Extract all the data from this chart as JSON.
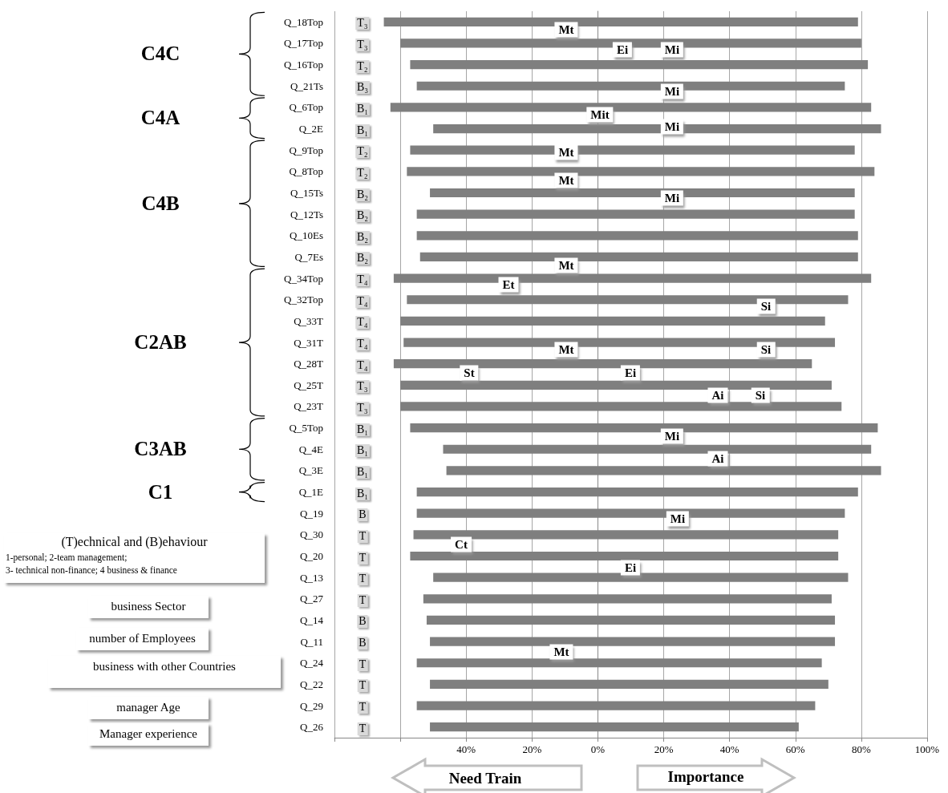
{
  "chart_data": {
    "type": "bar",
    "orientation": "horizontal",
    "color": "#7f7f7f",
    "grid": "x",
    "categories": [
      "Q_18Top",
      "Q_17Top",
      "Q_16Top",
      "Q_21Ts",
      "Q_6Top",
      "Q_2E",
      "Q_9Top",
      "Q_8Top",
      "Q_15Ts",
      "Q_12Ts",
      "Q_10Es",
      "Q_7Es",
      "Q_34Top",
      "Q_32Top",
      "Q_33T",
      "Q_31T",
      "Q_28T",
      "Q_25T",
      "Q_23T",
      "Q_5Top",
      "Q_4E",
      "Q_3E",
      "Q_1E",
      "Q_19",
      "Q_30",
      "Q_20",
      "Q_13",
      "Q_27",
      "Q_14",
      "Q_11",
      "Q_24",
      "Q_22",
      "Q_29",
      "Q_26"
    ],
    "base": [
      -65,
      -60,
      -57,
      -55,
      -63,
      -50,
      -57,
      -58,
      -51,
      -55,
      -55,
      -54,
      -62,
      -58,
      -60,
      -59,
      -62,
      -60,
      -60,
      -57,
      -47,
      -46,
      -55,
      -55,
      -56,
      -57,
      -50,
      -53,
      -52,
      -51,
      -55,
      -51,
      -55,
      -51
    ],
    "values": [
      144,
      140,
      139,
      130,
      146,
      136,
      135,
      142,
      129,
      133,
      134,
      133,
      145,
      134,
      129,
      131,
      127,
      131,
      134,
      142,
      130,
      132,
      134,
      130,
      129,
      130,
      126,
      124,
      124,
      123,
      123,
      121,
      121,
      112
    ],
    "xlim": [
      -80,
      100
    ],
    "xticks": [
      {
        "value": -80,
        "label": null
      },
      {
        "value": -60,
        "label": null
      },
      {
        "value": -40,
        "label": "40%"
      },
      {
        "value": -20,
        "label": "20%"
      },
      {
        "value": 0,
        "label": "0%"
      },
      {
        "value": 20,
        "label": "20%"
      },
      {
        "value": 40,
        "label": "40%"
      },
      {
        "value": 60,
        "label": "60%"
      },
      {
        "value": 80,
        "label": "80%"
      },
      {
        "value": 100,
        "label": "100%"
      }
    ],
    "annotations": [
      "C4C",
      "C4A",
      "C4B",
      "C2AB",
      "C3AB",
      "C1",
      "(T)echnical  and (B)ehaviour",
      "1-personal; 2-team management;",
      "3- technical non-finance; 4 business & finance",
      "business Sector",
      "number of  Employees",
      "business with other Countries",
      "manager Age",
      "Manager experience",
      "Need Train",
      "Importance",
      "T₃",
      "T₃",
      "T₂",
      "B₃",
      "B₁",
      "B₁",
      "T₂",
      "T₂",
      "B₂",
      "B₂",
      "B₂",
      "B₂",
      "T₄",
      "T₄",
      "T₄",
      "T₄",
      "T₄",
      "T₃",
      "T₃",
      "B₁",
      "B₁",
      "B₁",
      "B₁",
      "B",
      "T",
      "T",
      "T",
      "T",
      "B",
      "B",
      "T",
      "T",
      "T",
      "T",
      "Mt",
      "Ei",
      "Mi",
      "Mi",
      "Mit",
      "Mi",
      "Mt",
      "Mt",
      "Mi",
      "Mt",
      "Et",
      "Si",
      "Mt",
      "Si",
      "St",
      "Ei",
      "Ai",
      "Si",
      "Mi",
      "Ai",
      "Mi",
      "Ct",
      "Ei",
      "Mt"
    ]
  }
}
